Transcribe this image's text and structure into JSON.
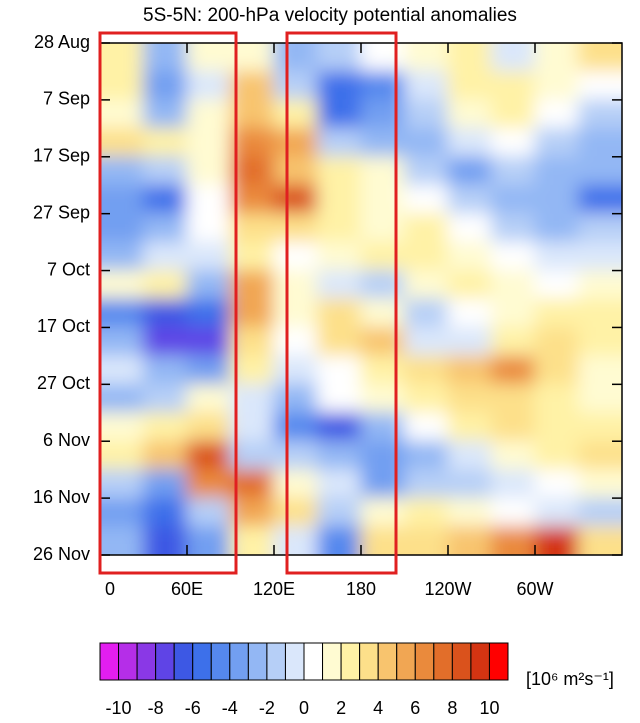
{
  "chart_data": {
    "type": "contour",
    "title": "5S-5N: 200-hPa velocity potential anomalies",
    "x": [
      15,
      45,
      75,
      105,
      135,
      165,
      195,
      225,
      255,
      285,
      315,
      345
    ],
    "y": [
      2.5,
      7.5,
      12.5,
      17.5,
      22.5,
      27.5,
      32.5,
      37.5,
      42.5,
      47.5,
      52.5,
      57.5,
      62.5,
      67.5,
      72.5,
      77.5,
      82.5,
      87.5
    ],
    "values": [
      [
        2,
        -3,
        1,
        1,
        -3,
        -2,
        0,
        1,
        2,
        -1,
        1,
        3
      ],
      [
        2,
        -4,
        -1,
        4,
        -2,
        -6,
        -5,
        -1,
        2,
        2,
        1,
        0
      ],
      [
        1,
        -3,
        1,
        4,
        2,
        -6,
        -4,
        -2,
        1,
        2,
        0,
        -2
      ],
      [
        3,
        2,
        1,
        6,
        5,
        -2,
        -3,
        -3,
        -1,
        0,
        -2,
        -3
      ],
      [
        -3,
        -2,
        1,
        7,
        4,
        2,
        1,
        -2,
        -4,
        -2,
        -3,
        -3
      ],
      [
        -4,
        -6,
        0,
        6,
        8,
        2,
        1,
        0,
        -2,
        -3,
        -3,
        -6
      ],
      [
        -4,
        -3,
        0,
        3,
        3,
        2,
        1,
        2,
        0,
        -2,
        -3,
        -2
      ],
      [
        -3,
        -1,
        -1,
        2,
        0,
        1,
        2,
        2,
        1,
        0,
        -1,
        -1
      ],
      [
        1,
        2,
        -3,
        5,
        1,
        -1,
        -2,
        1,
        2,
        1,
        0,
        1
      ],
      [
        -5,
        -7,
        -6,
        5,
        1,
        3,
        1,
        -2,
        0,
        1,
        2,
        2
      ],
      [
        -3,
        -8,
        -8,
        3,
        0,
        3,
        4,
        -1,
        -1,
        2,
        3,
        2
      ],
      [
        -1,
        -3,
        -4,
        2,
        -1,
        0,
        2,
        3,
        4,
        6,
        3,
        1
      ],
      [
        -3,
        -2,
        1,
        -1,
        -3,
        0,
        1,
        2,
        3,
        3,
        2,
        1
      ],
      [
        1,
        2,
        3,
        -1,
        -5,
        -7,
        -3,
        0,
        2,
        3,
        2,
        2
      ],
      [
        2,
        4,
        8,
        -2,
        -2,
        -3,
        -4,
        -3,
        -1,
        1,
        2,
        3
      ],
      [
        -2,
        -4,
        6,
        7,
        1,
        -1,
        -4,
        -2,
        -2,
        -1,
        0,
        1
      ],
      [
        -4,
        -6,
        -2,
        5,
        3,
        -2,
        1,
        2,
        1,
        0,
        -1,
        -2
      ],
      [
        -3,
        -7,
        -4,
        2,
        -1,
        -5,
        3,
        3,
        4,
        6,
        9,
        3
      ]
    ],
    "xlim": [
      0,
      360
    ],
    "ylim": [
      0,
      90
    ],
    "xticks": [
      0,
      {
        "value": 60,
        "label": "60E"
      },
      {
        "value": 120,
        "label": "120E"
      },
      180,
      {
        "value": 240,
        "label": "120W"
      },
      {
        "value": 300,
        "label": "60W"
      }
    ],
    "yticks": [
      {
        "value": 0,
        "label": "28 Aug"
      },
      {
        "value": 10,
        "label": "7 Sep"
      },
      {
        "value": 20,
        "label": "17 Sep"
      },
      {
        "value": 30,
        "label": "27 Sep"
      },
      {
        "value": 40,
        "label": "7 Oct"
      },
      {
        "value": 50,
        "label": "17 Oct"
      },
      {
        "value": 60,
        "label": "27 Oct"
      },
      {
        "value": 70,
        "label": "6 Nov"
      },
      {
        "value": 80,
        "label": "16 Nov"
      },
      {
        "value": 90,
        "label": "26 Nov"
      }
    ],
    "levels": [
      -10,
      -9,
      -8,
      -7,
      -6,
      -5,
      -4,
      -3,
      -2,
      -1,
      0,
      1,
      2,
      3,
      4,
      5,
      6,
      7,
      8,
      9,
      10
    ],
    "colors": [
      "#e31ef0",
      "#b52ee8",
      "#8a38e6",
      "#5f44e6",
      "#3d58e4",
      "#3d70ea",
      "#5588ee",
      "#729ff1",
      "#93b7f4",
      "#b6cff7",
      "#dae7fb",
      "#ffffff",
      "#fffbd2",
      "#fff2a6",
      "#fde08a",
      "#f8c46e",
      "#f1a653",
      "#ea8a3c",
      "#e26e2a",
      "#da521c",
      "#d43412",
      "#ff0000"
    ],
    "colorbar_ticks": [
      -10,
      -8,
      -6,
      -4,
      -2,
      0,
      2,
      4,
      6,
      8,
      10
    ],
    "colorbar_label": "[10⁶ m²s⁻¹]"
  }
}
